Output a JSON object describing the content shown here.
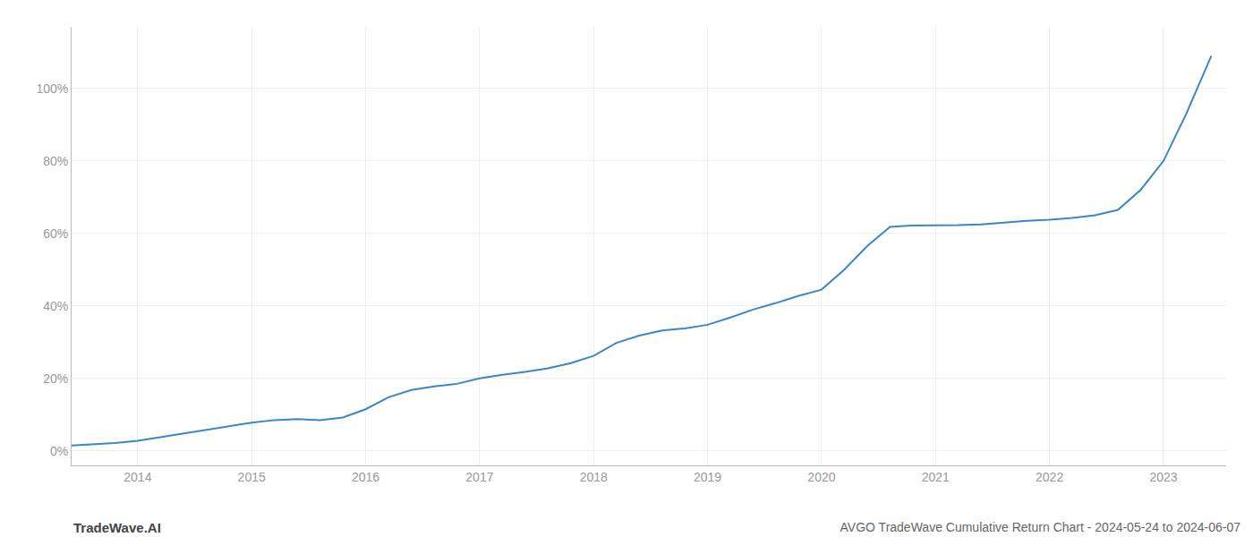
{
  "chart_data": {
    "type": "line",
    "title": "AVGO TradeWave Cumulative Return Chart - 2024-05-24 to 2024-06-07",
    "annotations": [
      "TradeWave.AI"
    ],
    "color": "#3a87c8",
    "x": [
      2013.42,
      2013.6,
      2013.8,
      2014.0,
      2014.2,
      2014.4,
      2014.6,
      2014.8,
      2015.0,
      2015.2,
      2015.4,
      2015.6,
      2015.8,
      2016.0,
      2016.2,
      2016.4,
      2016.6,
      2016.8,
      2017.0,
      2017.2,
      2017.4,
      2017.6,
      2017.8,
      2018.0,
      2018.2,
      2018.4,
      2018.6,
      2018.8,
      2019.0,
      2019.2,
      2019.4,
      2019.6,
      2019.8,
      2020.0,
      2020.2,
      2020.4,
      2020.6,
      2020.8,
      2021.0,
      2021.2,
      2021.4,
      2021.6,
      2021.8,
      2022.0,
      2022.2,
      2022.4,
      2022.6,
      2022.8,
      2023.0,
      2023.2,
      2023.42
    ],
    "values": [
      0.015,
      0.018,
      0.022,
      0.028,
      0.038,
      0.048,
      0.058,
      0.068,
      0.078,
      0.085,
      0.088,
      0.085,
      0.092,
      0.115,
      0.148,
      0.168,
      0.178,
      0.185,
      0.2,
      0.21,
      0.218,
      0.228,
      0.242,
      0.262,
      0.298,
      0.318,
      0.332,
      0.338,
      0.348,
      0.368,
      0.39,
      0.408,
      0.428,
      0.445,
      0.5,
      0.565,
      0.618,
      0.622,
      0.622,
      0.623,
      0.625,
      0.63,
      0.635,
      0.638,
      0.643,
      0.65,
      0.665,
      0.72,
      0.8,
      0.93,
      1.09
    ],
    "xlim": [
      2013.42,
      2023.55
    ],
    "ylim": [
      -0.04,
      1.17
    ],
    "xticks": [
      2014,
      2015,
      2016,
      2017,
      2018,
      2019,
      2020,
      2021,
      2022,
      2023
    ],
    "yticks": [
      {
        "value": 0.0,
        "label": "0%"
      },
      {
        "value": 0.2,
        "label": "20%"
      },
      {
        "value": 0.4,
        "label": "40%"
      },
      {
        "value": 0.6,
        "label": "60%"
      },
      {
        "value": 0.8,
        "label": "80%"
      },
      {
        "value": 1.0,
        "label": "100%"
      }
    ],
    "grid": true
  }
}
